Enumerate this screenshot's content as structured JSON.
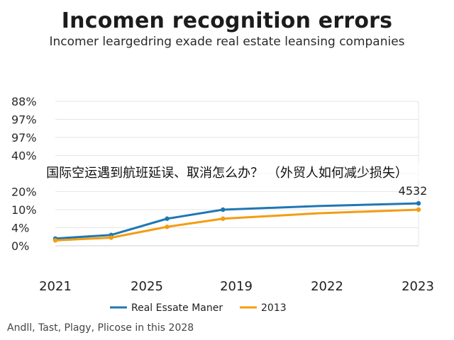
{
  "overlay_text": "国际空运遇到航班延误、取消怎么办？ （外贸人如何减少损失）",
  "footer": "Andll, Tast, Plagy, Plicose in this 2028",
  "colors": {
    "series1": "#1f77b4",
    "series2": "#f39c12",
    "grid": "#e6e6e6",
    "axis": "#cfcfcf"
  },
  "chart_data": {
    "type": "line",
    "title": "Incomen recognition errors",
    "subtitle": "Incomer leargedring exade real estate leansing companies",
    "categories": [
      "2021",
      "2025",
      "2019",
      "2022",
      "2023"
    ],
    "y_tick_labels": [
      "0%",
      "4%",
      "10%",
      "20%",
      "",
      "40%",
      "97%",
      "97%",
      "88%"
    ],
    "grid": true,
    "legend_position": "bottom",
    "series": [
      {
        "name": "Real Essate Maner",
        "color": "#1f77b4",
        "x": [
          0,
          1,
          2,
          3,
          4.7,
          6.5
        ],
        "values": [
          0.4,
          0.6,
          1.5,
          2.0,
          2.2,
          2.35
        ]
      },
      {
        "name": "2013",
        "color": "#f39c12",
        "x": [
          0,
          1,
          2,
          3,
          4.7,
          6.5
        ],
        "values": [
          0.3,
          0.45,
          1.05,
          1.5,
          1.8,
          2.0
        ]
      }
    ],
    "annotations": [
      {
        "text": "4532",
        "series": 0,
        "point": 5
      }
    ]
  }
}
